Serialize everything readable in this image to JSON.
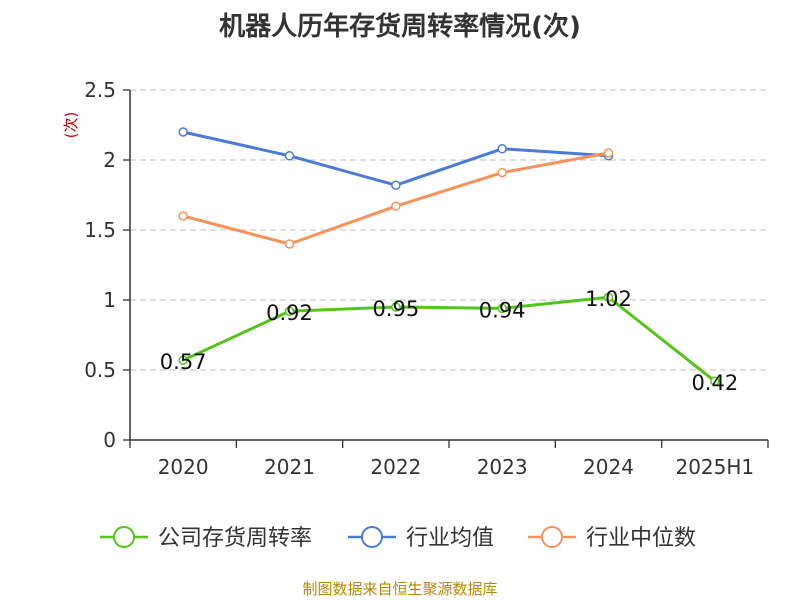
{
  "source_note": "制图数据来自恒生聚源数据库",
  "colors": {
    "company": "#52c41a",
    "industry_avg": "#4b7bd8",
    "industry_median": "#f7925c",
    "grid": "#cccccc",
    "axis": "#333333",
    "unit": "#cc0000"
  },
  "chart_data": {
    "type": "line",
    "title": "机器人历年存货周转率情况(次)",
    "unit_label": "(次)",
    "categories": [
      "2020",
      "2021",
      "2022",
      "2023",
      "2024",
      "2025H1"
    ],
    "y_ticks": [
      "0",
      "0.5",
      "1",
      "1.5",
      "2",
      "2.5"
    ],
    "ylim": [
      0,
      2.5
    ],
    "grid": true,
    "legend_position": "bottom",
    "series": [
      {
        "name": "公司存货周转率",
        "color": "#52c41a",
        "values": [
          0.57,
          0.92,
          0.95,
          0.94,
          1.02,
          0.42
        ],
        "labels": [
          "0.57",
          "0.92",
          "0.95",
          "0.94",
          "1.02",
          "0.42"
        ]
      },
      {
        "name": "行业均值",
        "color": "#4b7bd8",
        "values": [
          2.2,
          2.03,
          1.82,
          2.08,
          2.03,
          null
        ],
        "labels": []
      },
      {
        "name": "行业中位数",
        "color": "#f7925c",
        "values": [
          1.6,
          1.4,
          1.67,
          1.91,
          2.05,
          null
        ],
        "labels": []
      }
    ]
  }
}
